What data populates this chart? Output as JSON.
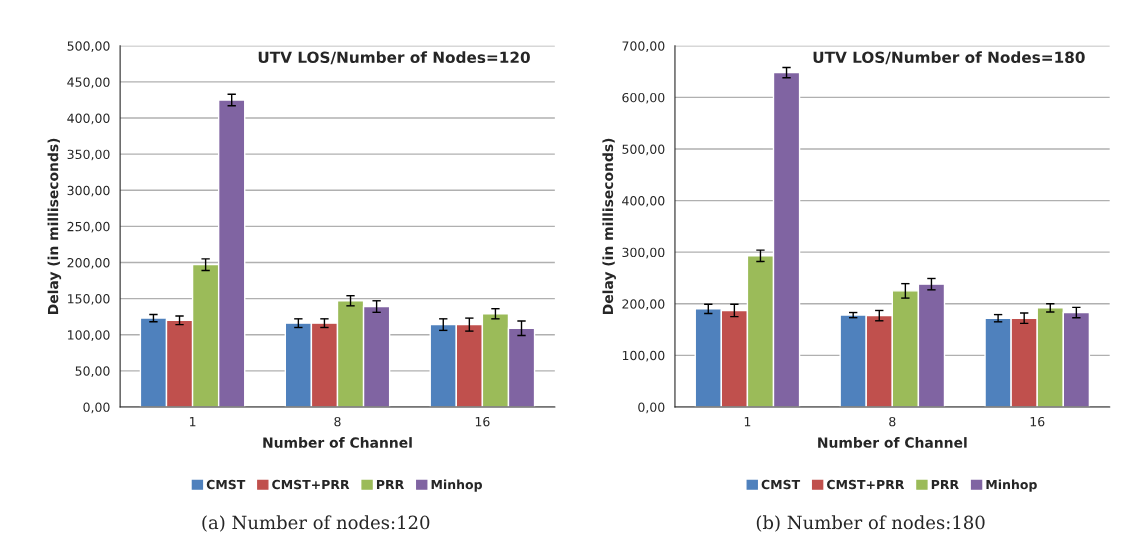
{
  "chart_data": [
    {
      "type": "bar",
      "title": "UTV LOS/Number of Nodes=120",
      "xlabel": "Number of Channel",
      "ylabel": "Delay (in milliseconds)",
      "categories": [
        "1",
        "8",
        "16"
      ],
      "series": [
        {
          "name": "CMST",
          "color": "#4f81bd",
          "values": [
            123,
            116,
            114
          ],
          "errors": [
            5,
            6,
            8
          ]
        },
        {
          "name": "CMST+PRR",
          "color": "#c0504d",
          "values": [
            120,
            116,
            114
          ],
          "errors": [
            6,
            6,
            9
          ]
        },
        {
          "name": "PRR",
          "color": "#9bbb59",
          "values": [
            197,
            147,
            129
          ],
          "errors": [
            8,
            7,
            7
          ]
        },
        {
          "name": "Minhop",
          "color": "#8064a2",
          "values": [
            425,
            139,
            109
          ],
          "errors": [
            8,
            8,
            10
          ]
        }
      ],
      "ylim": [
        0,
        500
      ],
      "yticks": [
        {
          "value": 0,
          "label": "0,00"
        },
        {
          "value": 50,
          "label": "50,00"
        },
        {
          "value": 100,
          "label": "100,00"
        },
        {
          "value": 150,
          "label": "150,00"
        },
        {
          "value": 200,
          "label": "200,00"
        },
        {
          "value": 250,
          "label": "250,00"
        },
        {
          "value": 300,
          "label": "300,00"
        },
        {
          "value": 350,
          "label": "350,00"
        },
        {
          "value": 400,
          "label": "400,00"
        },
        {
          "value": 450,
          "label": "450,00"
        },
        {
          "value": 500,
          "label": "500,00"
        }
      ],
      "grid": "y",
      "legend": "bottom",
      "annotations": [
        "(a) Number of nodes:120"
      ]
    },
    {
      "type": "bar",
      "title": "UTV LOS/Number of Nodes=180",
      "xlabel": "Number of Channel",
      "ylabel": "Delay (in milliseconds)",
      "categories": [
        "1",
        "8",
        "16"
      ],
      "series": [
        {
          "name": "CMST",
          "color": "#4f81bd",
          "values": [
            190,
            178,
            172
          ],
          "errors": [
            9,
            5,
            7
          ]
        },
        {
          "name": "CMST+PRR",
          "color": "#c0504d",
          "values": [
            187,
            177,
            172
          ],
          "errors": [
            12,
            10,
            10
          ]
        },
        {
          "name": "PRR",
          "color": "#9bbb59",
          "values": [
            293,
            225,
            192
          ],
          "errors": [
            11,
            14,
            8
          ]
        },
        {
          "name": "Minhop",
          "color": "#8064a2",
          "values": [
            648,
            238,
            183
          ],
          "errors": [
            10,
            11,
            10
          ]
        }
      ],
      "ylim": [
        0,
        700
      ],
      "yticks": [
        {
          "value": 0,
          "label": "0,00"
        },
        {
          "value": 100,
          "label": "100,00"
        },
        {
          "value": 200,
          "label": "200,00"
        },
        {
          "value": 300,
          "label": "300,00"
        },
        {
          "value": 400,
          "label": "400,00"
        },
        {
          "value": 500,
          "label": "500,00"
        },
        {
          "value": 600,
          "label": "600,00"
        },
        {
          "value": 700,
          "label": "700,00"
        }
      ],
      "grid": "y",
      "legend": "bottom",
      "annotations": [
        "(b) Number of nodes:180"
      ]
    }
  ]
}
